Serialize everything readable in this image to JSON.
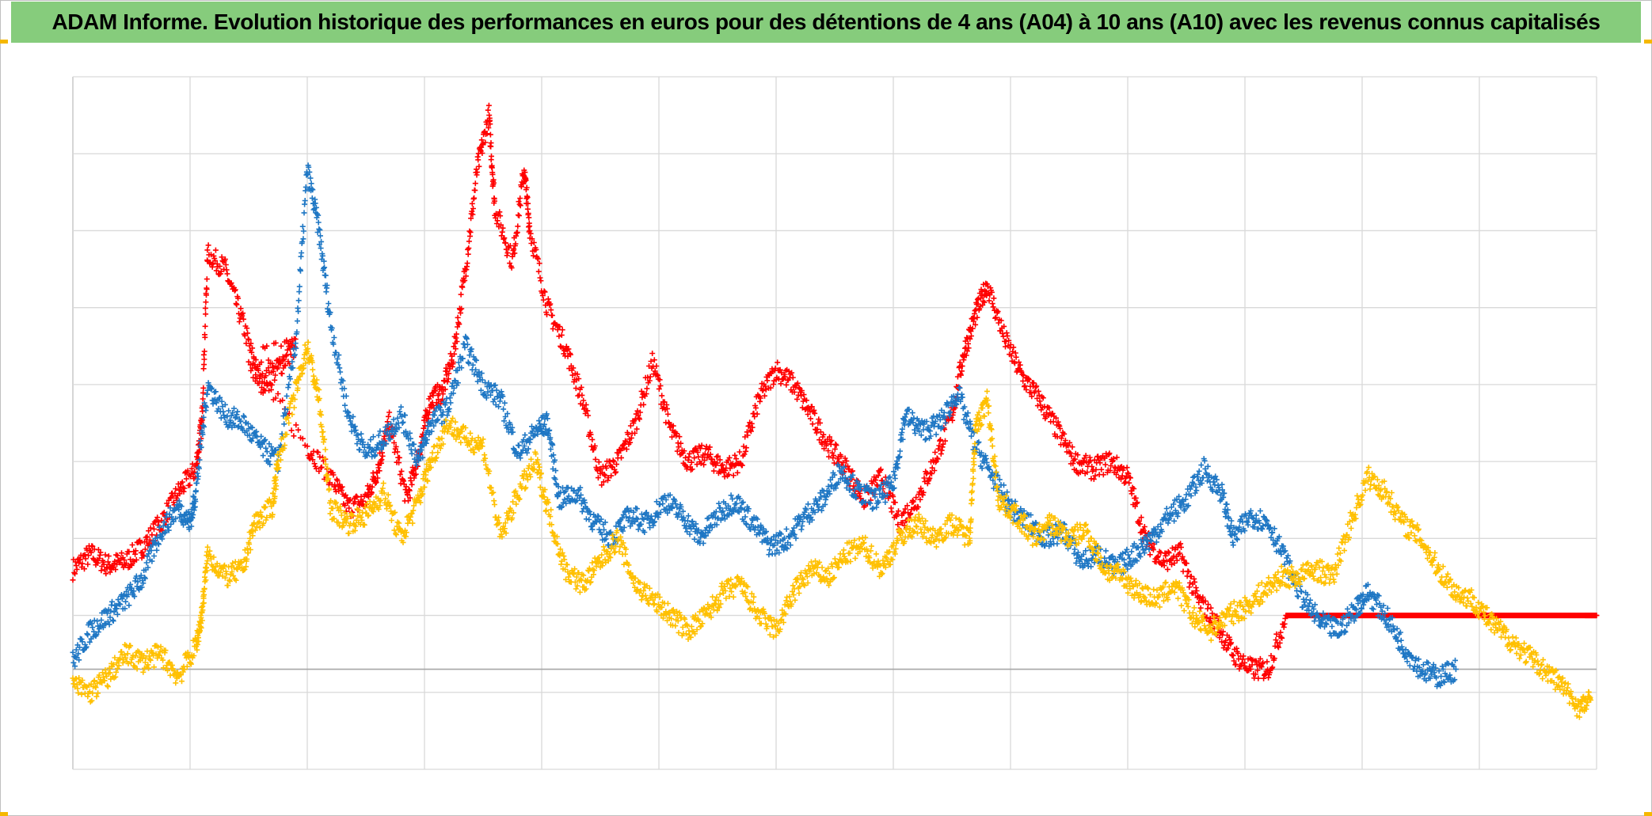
{
  "title": "ADAM Informe. Evolution historique des performances en euros pour des détentions de 4 ans (A04) à 10 ans (A10) avec les revenus connus capitalisés",
  "colors": {
    "title_bg": "#86cc7c",
    "corner": "#f5b800",
    "grid": "#d9d9d9",
    "axis": "#bfbfbf",
    "zero_line": "#a6a6a6"
  },
  "chart_data": {
    "type": "scatter",
    "marker": "plus",
    "xlim": [
      0,
      13
    ],
    "ylim": [
      0,
      9
    ],
    "zero_y": 1.3,
    "grid": true,
    "x_gridlines": 13,
    "y_gridlines": 9,
    "legend": "none",
    "series": [
      {
        "color": "#ff0000",
        "points": [
          [
            0,
            2.6
          ],
          [
            0.15,
            2.8
          ],
          [
            0.3,
            2.65
          ],
          [
            0.45,
            2.7
          ],
          [
            0.6,
            2.9
          ],
          [
            0.75,
            3.2
          ],
          [
            0.9,
            3.6
          ],
          [
            1.05,
            3.9
          ],
          [
            1.1,
            4.5
          ],
          [
            1.15,
            6.7
          ],
          [
            1.3,
            6.5
          ],
          [
            1.45,
            5.8
          ],
          [
            1.6,
            5.0
          ],
          [
            1.75,
            5.2
          ],
          [
            1.9,
            5.5
          ],
          [
            1.5,
            5.3
          ],
          [
            2.0,
            4.2
          ],
          [
            2.2,
            3.8
          ],
          [
            2.35,
            3.4
          ],
          [
            2.5,
            3.5
          ],
          [
            2.6,
            3.9
          ],
          [
            2.7,
            4.5
          ],
          [
            2.85,
            3.5
          ],
          [
            2.95,
            4.1
          ],
          [
            3.05,
            4.8
          ],
          [
            3.15,
            4.9
          ],
          [
            3.25,
            5.4
          ],
          [
            3.35,
            6.5
          ],
          [
            3.45,
            7.8
          ],
          [
            3.55,
            8.5
          ],
          [
            3.6,
            7.3
          ],
          [
            3.75,
            6.6
          ],
          [
            3.85,
            7.8
          ],
          [
            3.9,
            7.0
          ],
          [
            4.05,
            6.0
          ],
          [
            4.2,
            5.5
          ],
          [
            4.35,
            4.8
          ],
          [
            4.5,
            3.8
          ],
          [
            4.65,
            4.0
          ],
          [
            4.8,
            4.5
          ],
          [
            4.95,
            5.3
          ],
          [
            5.1,
            4.4
          ],
          [
            5.25,
            4.0
          ],
          [
            5.4,
            4.1
          ],
          [
            5.55,
            3.9
          ],
          [
            5.7,
            4.0
          ],
          [
            5.85,
            4.8
          ],
          [
            6.0,
            5.2
          ],
          [
            6.15,
            5.0
          ],
          [
            6.3,
            4.6
          ],
          [
            6.45,
            4.2
          ],
          [
            6.6,
            3.9
          ],
          [
            6.75,
            3.5
          ],
          [
            6.9,
            3.8
          ],
          [
            7.05,
            3.2
          ],
          [
            7.2,
            3.5
          ],
          [
            7.35,
            4.0
          ],
          [
            7.5,
            4.6
          ],
          [
            7.6,
            5.4
          ],
          [
            7.7,
            5.9
          ],
          [
            7.8,
            6.3
          ],
          [
            7.95,
            5.6
          ],
          [
            8.1,
            5.1
          ],
          [
            8.25,
            4.8
          ],
          [
            8.4,
            4.4
          ],
          [
            8.55,
            4.0
          ],
          [
            8.7,
            3.9
          ],
          [
            8.85,
            4.0
          ],
          [
            9.0,
            3.8
          ],
          [
            9.15,
            3.0
          ],
          [
            9.3,
            2.7
          ],
          [
            9.45,
            2.8
          ],
          [
            9.6,
            2.2
          ],
          [
            9.75,
            1.9
          ],
          [
            9.9,
            1.5
          ],
          [
            10.05,
            1.3
          ],
          [
            10.2,
            1.3
          ],
          [
            10.35,
            2.0
          ],
          [
            10.5,
            2.0
          ],
          [
            10.65,
            2.0
          ],
          [
            10.8,
            2.0
          ],
          [
            10.95,
            2.0
          ],
          [
            11.1,
            2.0
          ],
          [
            11.25,
            2.0
          ],
          [
            11.4,
            2.0
          ],
          [
            11.55,
            2.0
          ],
          [
            11.7,
            2.0
          ],
          [
            11.85,
            2.0
          ],
          [
            12.0,
            2.0
          ],
          [
            12.15,
            2.0
          ],
          [
            12.3,
            2.0
          ],
          [
            12.45,
            2.0
          ],
          [
            12.6,
            2.0
          ],
          [
            12.75,
            2.0
          ],
          [
            12.9,
            2.0
          ],
          [
            13.0,
            2.0
          ]
        ]
      },
      {
        "color": "#1f77c4",
        "points": [
          [
            0,
            1.4
          ],
          [
            0.15,
            1.8
          ],
          [
            0.3,
            2.0
          ],
          [
            0.45,
            2.2
          ],
          [
            0.6,
            2.5
          ],
          [
            0.75,
            3.1
          ],
          [
            0.9,
            3.4
          ],
          [
            1.0,
            3.2
          ],
          [
            1.05,
            3.6
          ],
          [
            1.15,
            5.0
          ],
          [
            1.3,
            4.6
          ],
          [
            1.45,
            4.5
          ],
          [
            1.6,
            4.2
          ],
          [
            1.75,
            4.0
          ],
          [
            1.9,
            5.5
          ],
          [
            2.0,
            7.8
          ],
          [
            2.1,
            7.0
          ],
          [
            2.2,
            5.8
          ],
          [
            2.35,
            4.6
          ],
          [
            2.5,
            4.1
          ],
          [
            2.65,
            4.3
          ],
          [
            2.8,
            4.6
          ],
          [
            2.95,
            4.0
          ],
          [
            3.05,
            4.5
          ],
          [
            3.2,
            4.7
          ],
          [
            3.35,
            5.5
          ],
          [
            3.5,
            5.0
          ],
          [
            3.65,
            4.8
          ],
          [
            3.8,
            4.1
          ],
          [
            3.95,
            4.4
          ],
          [
            4.05,
            4.5
          ],
          [
            4.15,
            3.5
          ],
          [
            4.3,
            3.6
          ],
          [
            4.45,
            3.2
          ],
          [
            4.6,
            3.0
          ],
          [
            4.75,
            3.3
          ],
          [
            4.9,
            3.2
          ],
          [
            5.05,
            3.5
          ],
          [
            5.2,
            3.3
          ],
          [
            5.35,
            3.0
          ],
          [
            5.5,
            3.3
          ],
          [
            5.65,
            3.5
          ],
          [
            5.8,
            3.2
          ],
          [
            5.95,
            2.9
          ],
          [
            6.1,
            3.0
          ],
          [
            6.25,
            3.3
          ],
          [
            6.4,
            3.5
          ],
          [
            6.55,
            3.9
          ],
          [
            6.7,
            3.6
          ],
          [
            6.85,
            3.5
          ],
          [
            7.0,
            3.7
          ],
          [
            7.1,
            4.6
          ],
          [
            7.25,
            4.4
          ],
          [
            7.4,
            4.5
          ],
          [
            7.55,
            4.9
          ],
          [
            7.7,
            4.2
          ],
          [
            7.85,
            3.8
          ],
          [
            8.0,
            3.4
          ],
          [
            8.15,
            3.2
          ],
          [
            8.3,
            3.0
          ],
          [
            8.45,
            3.1
          ],
          [
            8.6,
            2.7
          ],
          [
            8.75,
            2.8
          ],
          [
            8.9,
            2.6
          ],
          [
            9.05,
            2.8
          ],
          [
            9.2,
            3.0
          ],
          [
            9.35,
            3.3
          ],
          [
            9.5,
            3.5
          ],
          [
            9.65,
            3.9
          ],
          [
            9.8,
            3.6
          ],
          [
            9.9,
            3.0
          ],
          [
            10.05,
            3.3
          ],
          [
            10.2,
            3.2
          ],
          [
            10.35,
            2.7
          ],
          [
            10.5,
            2.2
          ],
          [
            10.65,
            1.9
          ],
          [
            10.8,
            1.8
          ],
          [
            10.95,
            2.1
          ],
          [
            11.05,
            2.3
          ],
          [
            11.2,
            2.0
          ],
          [
            11.35,
            1.6
          ],
          [
            11.5,
            1.3
          ],
          [
            11.65,
            1.2
          ],
          [
            11.8,
            1.3
          ]
        ]
      },
      {
        "color": "#ffc000",
        "points": [
          [
            0,
            1.1
          ],
          [
            0.15,
            1.0
          ],
          [
            0.3,
            1.2
          ],
          [
            0.45,
            1.5
          ],
          [
            0.6,
            1.4
          ],
          [
            0.75,
            1.5
          ],
          [
            0.9,
            1.2
          ],
          [
            1.05,
            1.6
          ],
          [
            1.1,
            2.0
          ],
          [
            1.15,
            2.8
          ],
          [
            1.3,
            2.5
          ],
          [
            1.45,
            2.6
          ],
          [
            1.55,
            3.2
          ],
          [
            1.7,
            3.4
          ],
          [
            1.75,
            4.0
          ],
          [
            1.9,
            4.9
          ],
          [
            2.0,
            5.5
          ],
          [
            2.1,
            4.8
          ],
          [
            2.2,
            3.4
          ],
          [
            2.35,
            3.2
          ],
          [
            2.5,
            3.3
          ],
          [
            2.65,
            3.6
          ],
          [
            2.8,
            3.0
          ],
          [
            2.95,
            3.5
          ],
          [
            3.05,
            4.0
          ],
          [
            3.2,
            4.5
          ],
          [
            3.35,
            4.3
          ],
          [
            3.5,
            4.2
          ],
          [
            3.65,
            3.0
          ],
          [
            3.8,
            3.6
          ],
          [
            3.95,
            4.0
          ],
          [
            4.05,
            3.4
          ],
          [
            4.2,
            2.6
          ],
          [
            4.35,
            2.4
          ],
          [
            4.5,
            2.7
          ],
          [
            4.65,
            3.0
          ],
          [
            4.8,
            2.4
          ],
          [
            4.95,
            2.2
          ],
          [
            5.1,
            2.0
          ],
          [
            5.25,
            1.8
          ],
          [
            5.4,
            2.0
          ],
          [
            5.55,
            2.3
          ],
          [
            5.7,
            2.4
          ],
          [
            5.85,
            2.0
          ],
          [
            6.0,
            1.8
          ],
          [
            6.15,
            2.3
          ],
          [
            6.3,
            2.6
          ],
          [
            6.45,
            2.5
          ],
          [
            6.6,
            2.8
          ],
          [
            6.75,
            2.9
          ],
          [
            6.9,
            2.6
          ],
          [
            7.05,
            3.0
          ],
          [
            7.2,
            3.2
          ],
          [
            7.35,
            3.0
          ],
          [
            7.5,
            3.2
          ],
          [
            7.65,
            3.0
          ],
          [
            7.7,
            4.4
          ],
          [
            7.8,
            4.8
          ],
          [
            7.9,
            3.5
          ],
          [
            8.05,
            3.3
          ],
          [
            8.2,
            3.0
          ],
          [
            8.35,
            3.2
          ],
          [
            8.5,
            3.0
          ],
          [
            8.65,
            3.1
          ],
          [
            8.8,
            2.6
          ],
          [
            8.95,
            2.5
          ],
          [
            9.1,
            2.3
          ],
          [
            9.25,
            2.2
          ],
          [
            9.4,
            2.4
          ],
          [
            9.55,
            2.0
          ],
          [
            9.7,
            1.8
          ],
          [
            9.85,
            2.0
          ],
          [
            10.0,
            2.1
          ],
          [
            10.15,
            2.3
          ],
          [
            10.3,
            2.5
          ],
          [
            10.45,
            2.5
          ],
          [
            10.6,
            2.6
          ],
          [
            10.75,
            2.5
          ],
          [
            10.9,
            3.2
          ],
          [
            11.05,
            3.8
          ],
          [
            11.2,
            3.6
          ],
          [
            11.35,
            3.2
          ],
          [
            11.5,
            3.0
          ],
          [
            11.65,
            2.6
          ],
          [
            11.8,
            2.3
          ],
          [
            11.95,
            2.2
          ],
          [
            12.1,
            1.9
          ],
          [
            12.25,
            1.7
          ],
          [
            12.4,
            1.5
          ],
          [
            12.55,
            1.3
          ],
          [
            12.7,
            1.1
          ],
          [
            12.85,
            0.8
          ],
          [
            12.95,
            0.9
          ]
        ]
      }
    ]
  }
}
